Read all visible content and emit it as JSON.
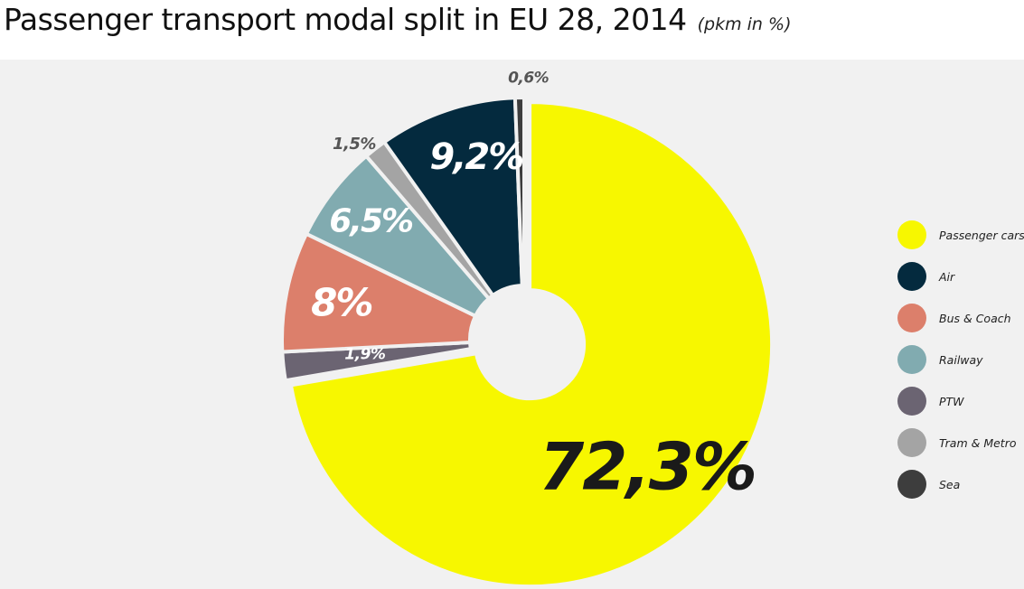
{
  "header": {
    "title": "Passenger transport modal split in EU 28, 2014",
    "subtitle": "(pkm in %)"
  },
  "chart_data": {
    "type": "pie",
    "style": "donut with exploded slices",
    "title": "Passenger transport modal split in EU 28, 2014",
    "subtitle": "(pkm in %)",
    "legend_position": "right",
    "slices": [
      {
        "name": "Passenger cars",
        "value": 72.3,
        "label": "72,3%",
        "color": "#f7f700"
      },
      {
        "name": "PTW",
        "value": 1.9,
        "label": "1,9%",
        "color": "#6b6472"
      },
      {
        "name": "Bus & Coach",
        "value": 8.0,
        "label": "8%",
        "color": "#dc7f6b"
      },
      {
        "name": "Railway",
        "value": 6.5,
        "label": "6,5%",
        "color": "#81abb0"
      },
      {
        "name": "Tram & Metro",
        "value": 1.5,
        "label": "1,5%",
        "color": "#a4a4a4"
      },
      {
        "name": "Air",
        "value": 9.2,
        "label": "9,2%",
        "color": "#042a3e"
      },
      {
        "name": "Sea",
        "value": 0.6,
        "label": "0,6%",
        "color": "#3d3d3d"
      }
    ]
  },
  "legend": {
    "items": [
      {
        "label": "Passenger cars",
        "color": "#f7f700"
      },
      {
        "label": "Air",
        "color": "#042a3e"
      },
      {
        "label": "Bus & Coach",
        "color": "#dc7f6b"
      },
      {
        "label": "Railway",
        "color": "#81abb0"
      },
      {
        "label": "PTW",
        "color": "#6b6472"
      },
      {
        "label": "Tram & Metro",
        "color": "#a4a4a4"
      },
      {
        "label": "Sea",
        "color": "#3d3d3d"
      }
    ]
  }
}
